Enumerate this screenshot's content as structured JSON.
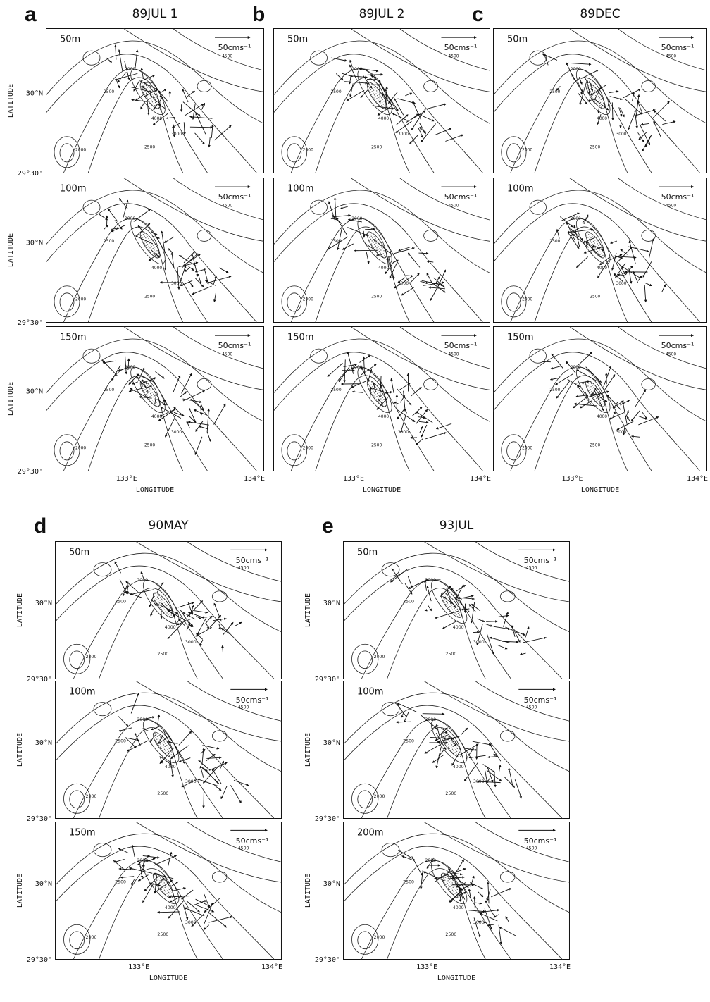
{
  "figure": {
    "panels": [
      {
        "letter": "a",
        "title": "89JUL 1",
        "depths": [
          "50m",
          "100m",
          "150m"
        ]
      },
      {
        "letter": "b",
        "title": "89JUL 2",
        "depths": [
          "50m",
          "100m",
          "150m"
        ]
      },
      {
        "letter": "c",
        "title": "89DEC",
        "depths": [
          "50m",
          "100m",
          "150m"
        ]
      },
      {
        "letter": "d",
        "title": "90MAY",
        "depths": [
          "50m",
          "100m",
          "150m"
        ]
      },
      {
        "letter": "e",
        "title": "93JUL",
        "depths": [
          "50m",
          "100m",
          "200m"
        ]
      }
    ],
    "scale_label": "50cms⁻¹",
    "axis": {
      "y_label": "LATITUDE",
      "y_ticks": [
        "30°N",
        "29°30'"
      ],
      "x_ticks": [
        "133°E",
        "134°E"
      ],
      "x_label": "LONGITUDE"
    },
    "contour_labels": [
      "2000",
      "2500",
      "3000",
      "4000",
      "4500"
    ]
  }
}
